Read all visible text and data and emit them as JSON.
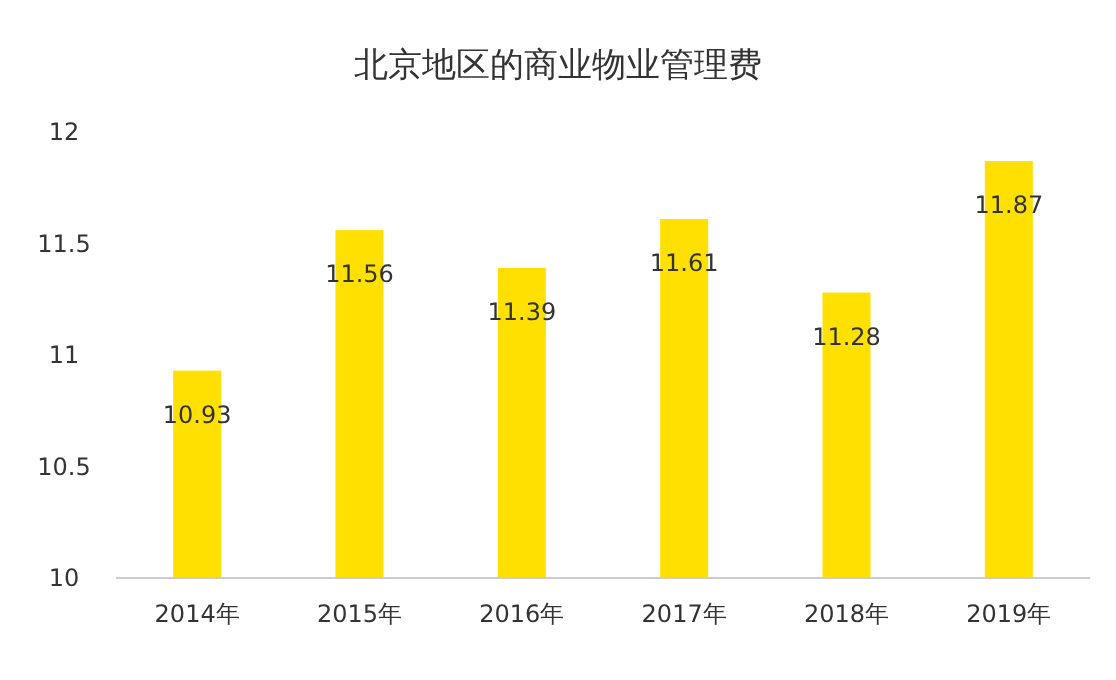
{
  "chart_data": {
    "type": "bar",
    "title": "北京地区的商业物业管理费",
    "categories": [
      "2014年",
      "2015年",
      "2016年",
      "2017年",
      "2018年",
      "2019年"
    ],
    "values": [
      10.93,
      11.56,
      11.39,
      11.61,
      11.28,
      11.87
    ],
    "color": "#ffe000",
    "ylim": [
      10,
      12
    ],
    "yticks": [
      10,
      10.5,
      11,
      11.5,
      12
    ],
    "data_labels": true
  }
}
